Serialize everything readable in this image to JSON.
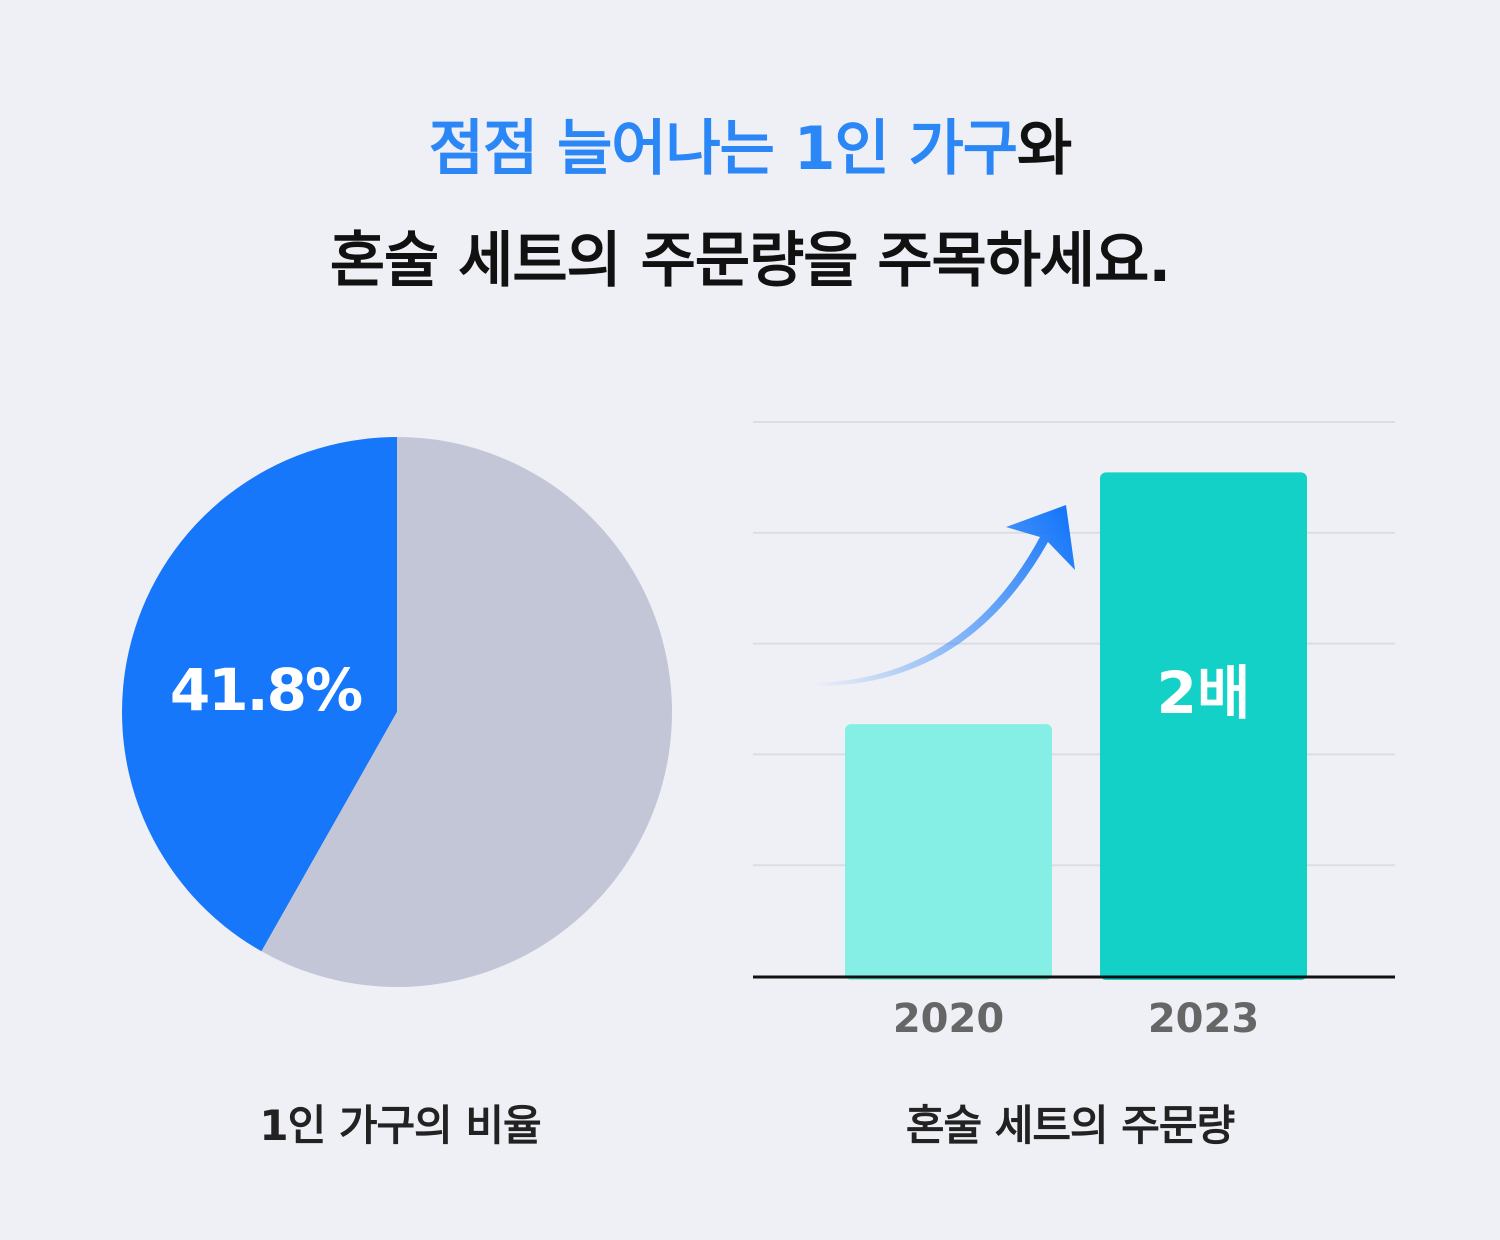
{
  "headline": {
    "line1_highlight": "점점 늘어나는 1인 가구",
    "line1_rest": "와",
    "line2": "혼술 세트의 주문량을 주목하세요."
  },
  "colors": {
    "highlight": "#2b86f6",
    "pie_primary": "#1677fa",
    "pie_rest": "#c3c6d6",
    "bar_2020": "#85efe5",
    "bar_2023": "#14d1c7",
    "arrow": "#1677fa"
  },
  "chart_data": [
    {
      "type": "pie",
      "title": "1인 가구의 비율",
      "slices": [
        {
          "value": 41.8,
          "color": "#1677fa"
        },
        {
          "value": 58.2,
          "color": "#c3c6d6"
        }
      ],
      "label": "41.8%"
    },
    {
      "type": "bar",
      "title": "혼술 세트의 주문량",
      "categories": [
        "2020",
        "2023"
      ],
      "values": [
        1,
        2
      ],
      "ylim": [
        0,
        2.2
      ],
      "grid": true,
      "annotation": "2배"
    }
  ]
}
